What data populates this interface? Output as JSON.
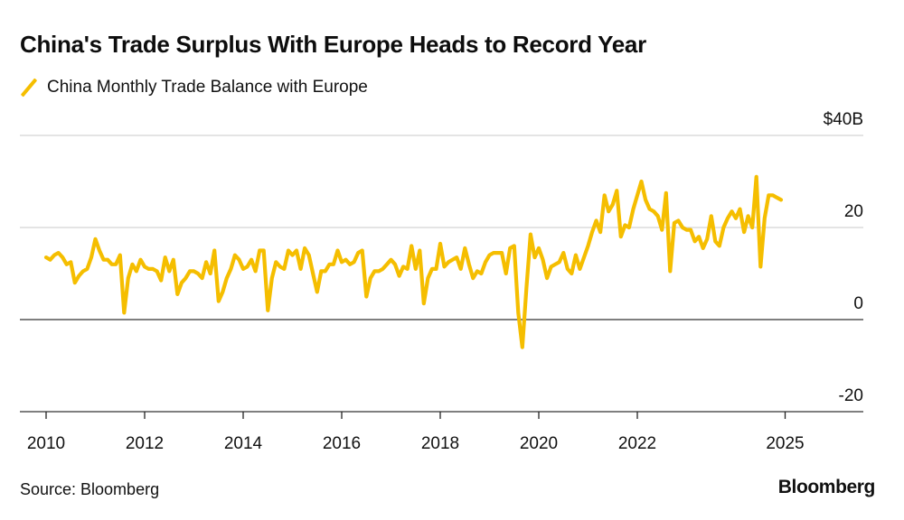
{
  "header": {
    "title": "China's Trade Surplus With Europe Heads to Record Year"
  },
  "footer": {
    "source": "Source: Bloomberg",
    "brand": "Bloomberg"
  },
  "colors": {
    "line": "#F5BE00",
    "grid": "#dcdcdc",
    "axis": "#555555"
  },
  "chart_data": {
    "type": "line",
    "title": "China's Trade Surplus With Europe Heads to Record Year",
    "xlabel": "",
    "ylabel": "",
    "ylim": [
      -20,
      40
    ],
    "xlim": [
      2009.8,
      2026.8
    ],
    "y_ticks": [
      {
        "value": 40,
        "label": "$40B"
      },
      {
        "value": 20,
        "label": "20"
      },
      {
        "value": 0,
        "label": "0"
      },
      {
        "value": -20,
        "label": "-20"
      }
    ],
    "x_ticks": [
      {
        "value": 2010,
        "label": "2010"
      },
      {
        "value": 2012,
        "label": "2012"
      },
      {
        "value": 2014,
        "label": "2014"
      },
      {
        "value": 2016,
        "label": "2016"
      },
      {
        "value": 2018,
        "label": "2018"
      },
      {
        "value": 2020,
        "label": "2020"
      },
      {
        "value": 2022,
        "label": "2022"
      },
      {
        "value": 2025,
        "label": "2025"
      }
    ],
    "grid": true,
    "legend": "top-left",
    "series": [
      {
        "name": "China Monthly Trade Balance with Europe",
        "start_year": 2010.0,
        "step_months": 1,
        "values": [
          13.5,
          13.0,
          14.0,
          14.5,
          13.5,
          12.0,
          12.5,
          8.0,
          9.5,
          10.5,
          11.0,
          13.5,
          17.5,
          15.0,
          13.0,
          13.0,
          12.0,
          12.0,
          14.0,
          1.5,
          9.0,
          12.0,
          10.5,
          13.0,
          11.5,
          11.0,
          11.0,
          10.5,
          8.5,
          13.5,
          10.5,
          13.0,
          5.5,
          8.0,
          9.0,
          10.5,
          10.5,
          10.0,
          9.0,
          12.5,
          10.0,
          15.0,
          4.0,
          6.0,
          9.0,
          11.0,
          14.0,
          13.0,
          11.0,
          11.5,
          13.0,
          10.5,
          15.0,
          15.0,
          2.0,
          9.0,
          12.5,
          11.5,
          11.0,
          15.0,
          14.0,
          15.0,
          11.0,
          15.5,
          14.0,
          10.0,
          6.0,
          10.5,
          10.5,
          12.0,
          12.0,
          15.0,
          12.5,
          13.0,
          12.0,
          12.5,
          14.5,
          15.0,
          5.0,
          9.0,
          10.5,
          10.5,
          11.0,
          12.0,
          13.0,
          12.0,
          9.5,
          11.5,
          11.0,
          16.0,
          11.0,
          15.0,
          3.5,
          9.0,
          11.0,
          11.0,
          16.5,
          11.5,
          12.5,
          13.0,
          13.5,
          11.0,
          15.5,
          12.0,
          9.0,
          10.5,
          10.0,
          12.5,
          14.0,
          14.5,
          14.5,
          14.5,
          10.0,
          15.5,
          16.0,
          1.5,
          -6.0,
          7.0,
          18.5,
          13.5,
          15.5,
          13.0,
          9.0,
          11.5,
          12.0,
          12.5,
          14.5,
          11.0,
          10.0,
          14.0,
          11.0,
          13.5,
          16.0,
          19.0,
          21.5,
          19.0,
          27.0,
          23.5,
          25.0,
          28.0,
          18.0,
          20.5,
          20.0,
          24.0,
          27.0,
          30.0,
          26.0,
          24.0,
          23.5,
          22.5,
          19.5,
          27.5,
          10.5,
          21.0,
          21.5,
          20.0,
          19.5,
          19.5,
          17.0,
          18.0,
          15.5,
          17.5,
          22.5,
          17.0,
          16.0,
          20.0,
          22.0,
          23.5,
          22.0,
          24.0,
          19.0,
          22.5,
          20.0,
          31.0,
          11.5,
          22.0,
          27.0,
          27.0,
          26.5,
          26.0
        ]
      }
    ]
  }
}
